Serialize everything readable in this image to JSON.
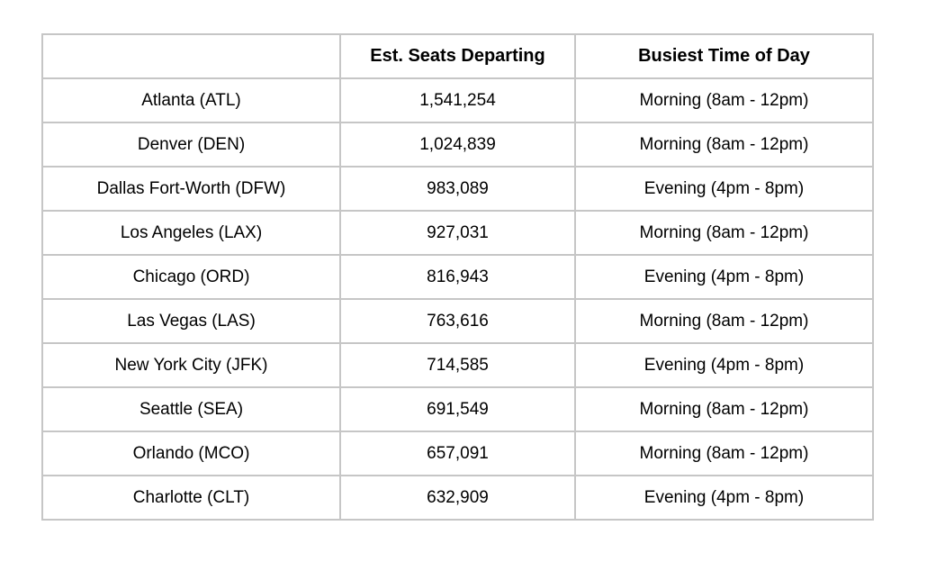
{
  "chart_data": {
    "type": "table",
    "title": "",
    "columns": [
      "",
      "Est. Seats Departing",
      "Busiest Time of Day"
    ],
    "rows": [
      [
        "Atlanta (ATL)",
        "1,541,254",
        "Morning (8am - 12pm)"
      ],
      [
        "Denver (DEN)",
        "1,024,839",
        "Morning (8am - 12pm)"
      ],
      [
        "Dallas Fort-Worth (DFW)",
        "983,089",
        "Evening (4pm - 8pm)"
      ],
      [
        "Los Angeles (LAX)",
        "927,031",
        "Morning (8am - 12pm)"
      ],
      [
        "Chicago (ORD)",
        "816,943",
        "Evening (4pm - 8pm)"
      ],
      [
        "Las Vegas (LAS)",
        "763,616",
        "Morning (8am - 12pm)"
      ],
      [
        "New York City (JFK)",
        "714,585",
        "Evening (4pm - 8pm)"
      ],
      [
        "Seattle (SEA)",
        "691,549",
        "Morning (8am - 12pm)"
      ],
      [
        "Orlando (MCO)",
        "657,091",
        "Morning (8am - 12pm)"
      ],
      [
        "Charlotte (CLT)",
        "632,909",
        "Evening (4pm - 8pm)"
      ]
    ],
    "seats_numeric": [
      1541254,
      1024839,
      983089,
      927031,
      816943,
      763616,
      714585,
      691549,
      657091,
      632909
    ],
    "layout": {
      "grid": true,
      "header_bold": true,
      "text_align": "center"
    }
  },
  "colors": {
    "border": "#c6c6c6",
    "text": "#000000",
    "background": "#ffffff"
  }
}
